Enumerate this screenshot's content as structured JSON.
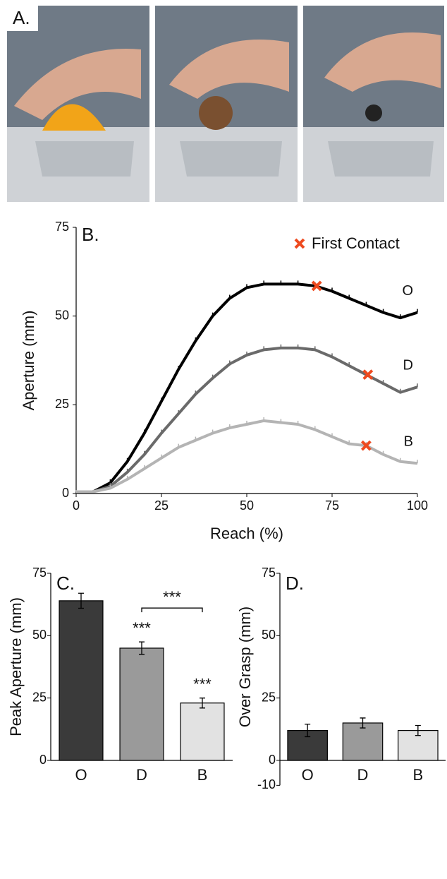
{
  "photo_panel": {
    "label": "A."
  },
  "chart_data": [
    {
      "type": "line",
      "panel_label": "B.",
      "x_label": "Reach (%)",
      "y_label": "Aperture (mm)",
      "x": [
        0,
        5,
        10,
        15,
        20,
        25,
        30,
        35,
        40,
        45,
        50,
        55,
        60,
        65,
        70,
        75,
        80,
        85,
        90,
        95,
        100
      ],
      "xlim": [
        0,
        100
      ],
      "xticks": [
        0,
        25,
        50,
        75,
        100
      ],
      "ylim": [
        0,
        75
      ],
      "yticks": [
        0,
        25,
        50,
        75
      ],
      "series": [
        {
          "name": "O",
          "color": "#000000",
          "values": [
            0.5,
            0.5,
            3,
            9,
            17,
            26,
            35,
            43,
            50,
            55,
            58,
            59,
            59,
            59,
            58.5,
            57,
            55,
            53,
            51,
            49.5,
            51
          ],
          "errors": [
            0.5,
            0.5,
            1,
            1,
            1,
            1,
            1,
            1,
            1,
            1,
            1,
            1,
            1,
            1,
            1,
            1,
            1,
            1,
            1,
            1,
            1
          ]
        },
        {
          "name": "D",
          "color": "#6a6a6a",
          "values": [
            0.5,
            0.5,
            2,
            6,
            11,
            17,
            22.5,
            28,
            32.5,
            36.5,
            39,
            40.5,
            41,
            41,
            40.5,
            38.5,
            36,
            33.5,
            31,
            28.5,
            30
          ],
          "errors": [
            0.5,
            0.5,
            1,
            1,
            1,
            1,
            1,
            1,
            1,
            1,
            1,
            1,
            1,
            1,
            1,
            1,
            1,
            1,
            1,
            1,
            1
          ]
        },
        {
          "name": "B",
          "color": "#b4b4b4",
          "values": [
            0.5,
            0.5,
            1.5,
            4,
            7,
            10,
            13,
            15,
            17,
            18.5,
            19.5,
            20.5,
            20,
            19.5,
            18,
            16,
            14,
            13.5,
            11,
            9,
            8.5
          ],
          "errors": [
            0.5,
            0.5,
            1,
            1,
            1,
            1,
            1,
            1,
            1,
            1,
            1,
            1,
            1,
            1,
            1,
            1,
            1,
            1,
            1,
            1,
            1
          ]
        }
      ],
      "markers": {
        "name": "First Contact",
        "color": "#ee4a1f",
        "x": [
          70.5,
          85.5,
          85
        ],
        "y": [
          58.5,
          33.5,
          13.5
        ]
      }
    },
    {
      "type": "bar",
      "panel_label": "C.",
      "y_label": "Peak Aperture (mm)",
      "categories": [
        "O",
        "D",
        "B"
      ],
      "values": [
        64,
        45,
        23
      ],
      "errors": [
        3,
        2.5,
        2
      ],
      "colors": [
        "#3a3a3a",
        "#9a9a9a",
        "#e2e2e2"
      ],
      "ylim": [
        0,
        75
      ],
      "yticks": [
        0,
        25,
        50,
        75
      ],
      "annotations": [
        "***",
        "***",
        "***"
      ]
    },
    {
      "type": "bar",
      "panel_label": "D.",
      "y_label": "Over Grasp (mm)",
      "categories": [
        "O",
        "D",
        "B"
      ],
      "values": [
        12,
        15,
        12
      ],
      "errors": [
        2.5,
        2,
        2
      ],
      "colors": [
        "#3a3a3a",
        "#9a9a9a",
        "#e2e2e2"
      ],
      "ylim": [
        -10,
        75
      ],
      "yticks": [
        -10,
        0,
        25,
        50,
        75
      ]
    }
  ]
}
